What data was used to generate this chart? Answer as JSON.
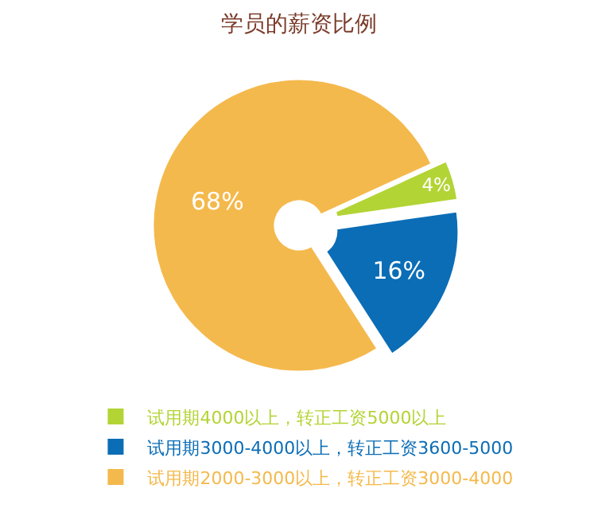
{
  "chart_data": {
    "type": "donut",
    "title": "学员的薪资比例",
    "categories": [
      "试用期4000以上，转正工资5000以上",
      "试用期3000-4000以上，转正工资3600-5000",
      "试用期2000-3000以上，转正工资3000-4000"
    ],
    "values": [
      4,
      16,
      68
    ],
    "value_labels": [
      "4%",
      "16%",
      "68%"
    ],
    "colors": [
      "#b3d435",
      "#0b6db6",
      "#f4b94c"
    ],
    "legend": "bottom"
  }
}
